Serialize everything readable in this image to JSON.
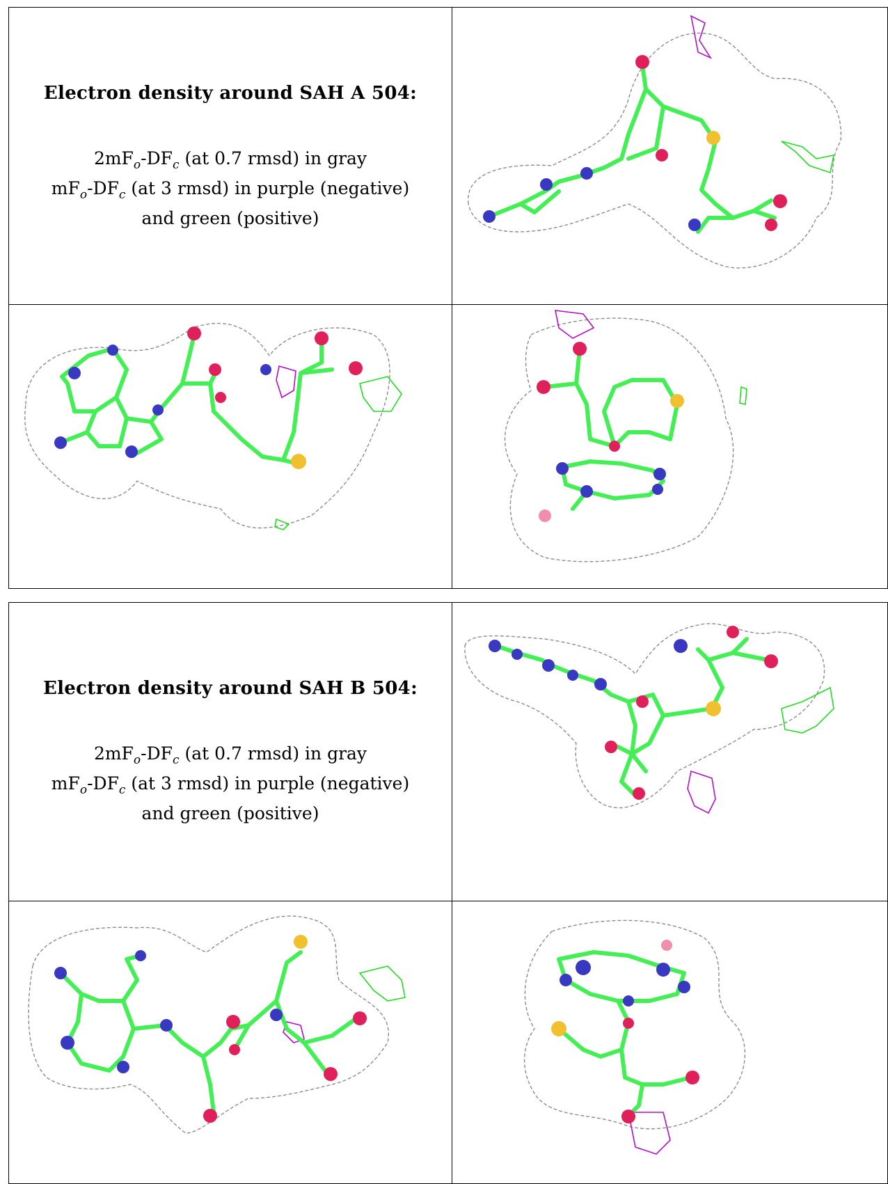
{
  "blocks": [
    {
      "heading": "Electron density around SAH A 504:",
      "line1_pre": "2mF",
      "line1_sub1": "o",
      "line1_mid": "-DF",
      "line1_sub2": "c",
      "line1_post": " (at 0.7 rmsd) in gray",
      "line2_pre": "mF",
      "line2_sub1": "o",
      "line2_mid": "-DF",
      "line2_sub2": "c",
      "line2_post": " (at 3 rmsd) in purple (negative)",
      "line3": "and green (positive)"
    },
    {
      "heading": "Electron density around SAH B 504:",
      "line1_pre": "2mF",
      "line1_sub1": "o",
      "line1_mid": "-DF",
      "line1_sub2": "c",
      "line1_post": " (at 0.7 rmsd) in gray",
      "line2_pre": "mF",
      "line2_sub1": "o",
      "line2_mid": "-DF",
      "line2_sub2": "c",
      "line2_post": " (at 3 rmsd) in purple (negative)",
      "line3": "and green (positive)"
    }
  ],
  "colors": {
    "mesh_2fofc": "#8c8c8c",
    "mesh_negative": "#b010c8",
    "mesh_positive": "#22dd22",
    "carbon": "#44ee55",
    "nitrogen": "#3838c0",
    "oxygen": "#e0205a",
    "sulfur": "#f0c030"
  },
  "icons": [
    "electron-density-mesh",
    "sah-molecule-model"
  ]
}
